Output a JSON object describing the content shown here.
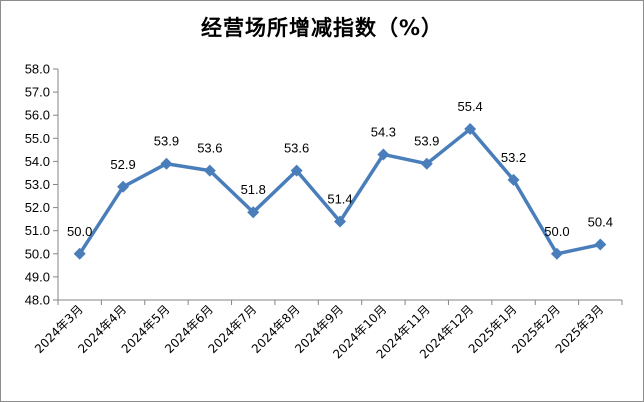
{
  "chart_data": {
    "type": "line",
    "title": "经营场所增减指数（%）",
    "xlabel": "",
    "ylabel": "",
    "categories": [
      "2024年3月",
      "2024年4月",
      "2024年5月",
      "2024年6月",
      "2024年7月",
      "2024年8月",
      "2024年9月",
      "2024年10月",
      "2024年11月",
      "2024年12月",
      "2025年1月",
      "2025年2月",
      "2025年3月"
    ],
    "series": [
      {
        "values": [
          50.0,
          52.9,
          53.9,
          53.6,
          51.8,
          53.6,
          51.4,
          54.3,
          53.9,
          55.4,
          53.2,
          50.0,
          50.4
        ],
        "data_labels": [
          "50.0",
          "52.9",
          "53.9",
          "53.6",
          "51.8",
          "53.6",
          "51.4",
          "54.3",
          "53.9",
          "55.4",
          "53.2",
          "50.0",
          "50.4"
        ],
        "color": "#4a7ebb",
        "marker": "diamond"
      }
    ],
    "ylim": [
      48.0,
      58.0
    ],
    "yticks": [
      "48.0",
      "49.0",
      "50.0",
      "51.0",
      "52.0",
      "53.0",
      "54.0",
      "55.0",
      "56.0",
      "57.0",
      "58.0"
    ],
    "grid": false
  }
}
